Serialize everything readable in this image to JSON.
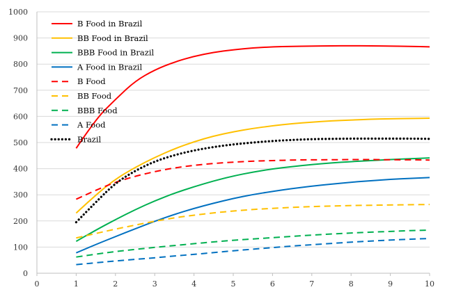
{
  "chart_data": {
    "type": "line",
    "title": "",
    "xlabel": "",
    "ylabel": "",
    "xlim": [
      0,
      10
    ],
    "ylim": [
      0,
      1000
    ],
    "x_ticks": [
      0,
      1,
      2,
      3,
      4,
      5,
      6,
      7,
      8,
      9,
      10
    ],
    "y_ticks": [
      0,
      100,
      200,
      300,
      400,
      500,
      600,
      700,
      800,
      900,
      1000
    ],
    "grid": "horizontal",
    "legend_position": "top-left",
    "x": [
      1,
      1.5,
      2,
      2.5,
      3,
      3.5,
      4,
      4.5,
      5,
      5.5,
      6,
      6.5,
      7,
      7.5,
      8,
      8.5,
      9,
      9.5,
      10
    ],
    "series": [
      {
        "name": "B Food in Brazil",
        "color": "#ff0000",
        "dash": "solid",
        "values": [
          478,
          590,
          665,
          735,
          778,
          808,
          830,
          845,
          855,
          862,
          866,
          868,
          869,
          870,
          870,
          870,
          869,
          868,
          866
        ]
      },
      {
        "name": "BB Food in Brazil",
        "color": "#ffc000",
        "dash": "solid",
        "values": [
          230,
          300,
          360,
          405,
          443,
          476,
          503,
          525,
          541,
          554,
          564,
          572,
          578,
          583,
          586,
          589,
          591,
          592,
          593
        ]
      },
      {
        "name": "BBB Food in Brazil",
        "color": "#00b050",
        "dash": "solid",
        "values": [
          122,
          165,
          205,
          243,
          277,
          306,
          331,
          353,
          372,
          387,
          399,
          408,
          416,
          422,
          427,
          431,
          435,
          438,
          441
        ]
      },
      {
        "name": "A Food in Brazil",
        "color": "#0070c0",
        "dash": "solid",
        "values": [
          78,
          110,
          140,
          170,
          199,
          225,
          248,
          268,
          286,
          301,
          313,
          324,
          333,
          341,
          348,
          354,
          359,
          363,
          366
        ]
      },
      {
        "name": "B Food",
        "color": "#ff0000",
        "dash": "dashed",
        "values": [
          283,
          318,
          348,
          371,
          389,
          403,
          413,
          420,
          425,
          429,
          431,
          433,
          434,
          434,
          435,
          435,
          434,
          434,
          433
        ]
      },
      {
        "name": "BB Food",
        "color": "#ffc000",
        "dash": "dashed",
        "values": [
          135,
          152,
          169,
          184,
          199,
          212,
          222,
          231,
          238,
          244,
          248,
          252,
          255,
          257,
          259,
          260,
          261,
          262,
          263
        ]
      },
      {
        "name": "BBB Food",
        "color": "#00b050",
        "dash": "dashed",
        "values": [
          62,
          73,
          83,
          91,
          99,
          106,
          113,
          120,
          126,
          131,
          136,
          141,
          146,
          150,
          154,
          157,
          160,
          163,
          165
        ]
      },
      {
        "name": "A Food",
        "color": "#0070c0",
        "dash": "dashed",
        "values": [
          33,
          40,
          47,
          53,
          59,
          66,
          72,
          79,
          86,
          92,
          98,
          104,
          109,
          114,
          119,
          123,
          127,
          130,
          133
        ]
      },
      {
        "name": "Brazil",
        "color": "#000000",
        "dash": "dotted",
        "values": [
          195,
          272,
          345,
          392,
          428,
          452,
          470,
          483,
          493,
          500,
          506,
          510,
          513,
          514,
          515,
          515,
          515,
          515,
          514
        ]
      }
    ]
  }
}
